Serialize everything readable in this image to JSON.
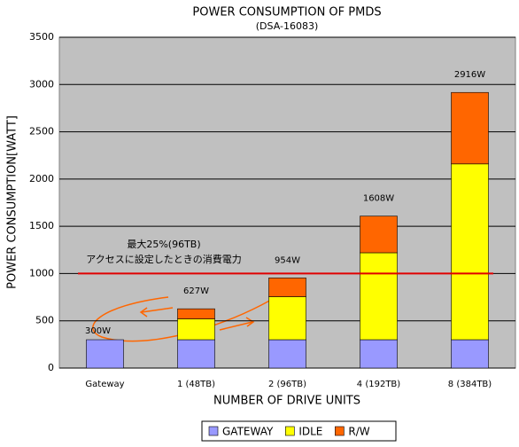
{
  "chart_data": {
    "type": "stacked-bar",
    "title": "POWER CONSUMPTION OF PMDS",
    "subtitle": "(DSA-16083)",
    "x_label": "NUMBER OF DRIVE UNITS",
    "y_label": "POWER CONSUMPTION[WATT]",
    "categories": [
      "Gateway",
      "1 (48TB)",
      "2 (96TB)",
      "4 (192TB)",
      "8 (384TB)"
    ],
    "series": [
      {
        "name": "GATEWAY",
        "color": "#9999ff",
        "values": [
          300,
          300,
          300,
          300,
          300
        ]
      },
      {
        "name": "IDLE",
        "color": "#ffff00",
        "values": [
          null,
          220,
          455,
          920,
          1860
        ]
      },
      {
        "name": "R/W",
        "color": "#ff6600",
        "values": [
          null,
          107,
          199,
          388,
          756
        ]
      }
    ],
    "total_labels": [
      "300W",
      "627W",
      "954W",
      "1608W",
      "2916W"
    ],
    "ylim": [
      0,
      3500
    ],
    "yticks": [
      0,
      500,
      1000,
      1500,
      2000,
      2500,
      3000,
      3500
    ],
    "grid": true,
    "legend": "bottom",
    "reference_line": {
      "value": 1000,
      "color": "#e00000"
    },
    "annotation": [
      "最大25%(96TB)",
      "アクセスに設定したときの消費電力"
    ]
  }
}
